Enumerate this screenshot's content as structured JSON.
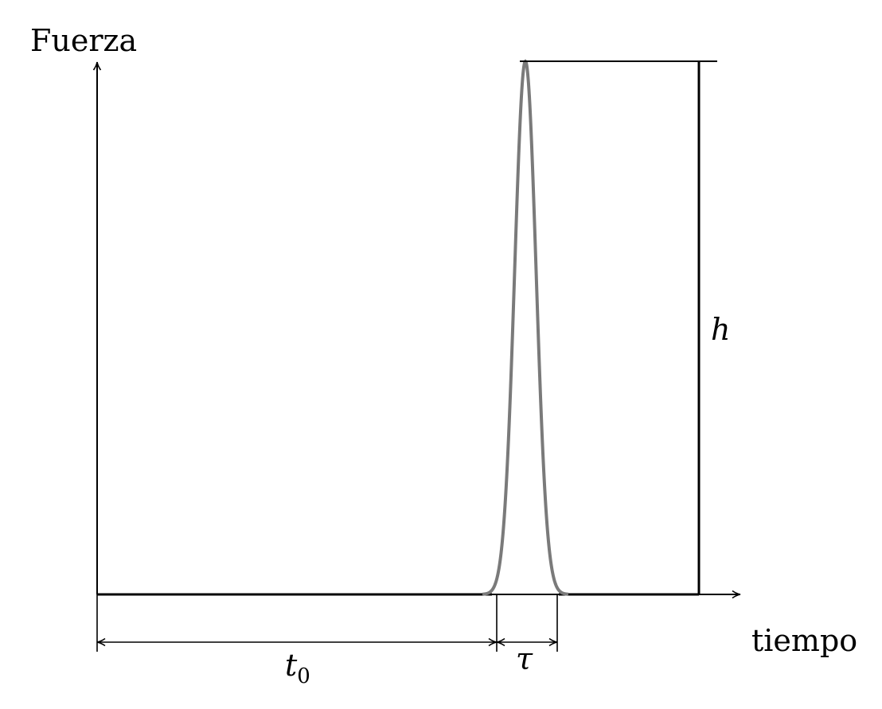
{
  "labels": {
    "y_axis": "Fuerza",
    "x_axis": "tiempo",
    "height": "h",
    "delay": "t",
    "delay_subscript": "0",
    "width": "τ"
  },
  "colors": {
    "axis": "#000000",
    "pulse": "#7a7a7a",
    "background": "#ffffff"
  }
}
